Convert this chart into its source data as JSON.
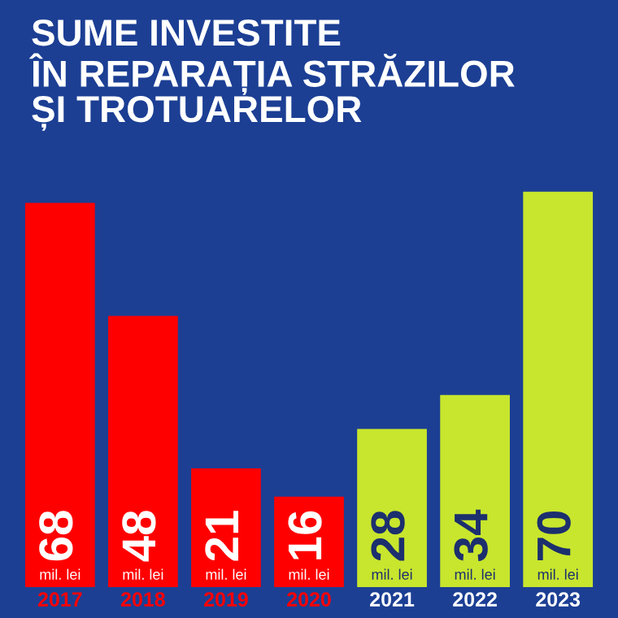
{
  "chart_data": {
    "type": "bar",
    "title": "SUME INVESTITE\nÎN REPARAȚIA STRĂZILOR\nȘI TROTUARELOR",
    "categories": [
      "2017",
      "2018",
      "2019",
      "2020",
      "2021",
      "2022",
      "2023"
    ],
    "values": [
      68,
      48,
      21,
      16,
      28,
      34,
      70
    ],
    "colors": [
      "#ff0000",
      "#ff0000",
      "#ff0000",
      "#ff0000",
      "#c8e62d",
      "#c8e62d",
      "#c8e62d"
    ],
    "data_labels": true,
    "annotations": [
      {
        "text": "mil. lei",
        "x": "2017",
        "y": 0
      },
      {
        "text": "mil. lei",
        "x": "2018",
        "y": 0
      },
      {
        "text": "mil. lei",
        "x": "2019",
        "y": 0
      },
      {
        "text": "mil. lei",
        "x": "2020",
        "y": 0
      },
      {
        "text": "mil. lei",
        "x": "2021",
        "y": 0
      },
      {
        "text": "mil. lei",
        "x": "2022",
        "y": 0
      },
      {
        "text": "mil. lei",
        "x": "2023",
        "y": 0
      }
    ],
    "grid": false,
    "legend": false
  }
}
